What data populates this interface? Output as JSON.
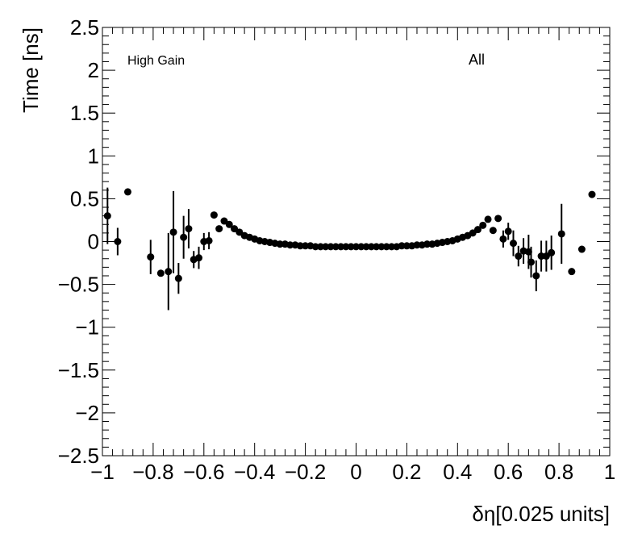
{
  "chart_data": {
    "type": "scatter",
    "xlabel": "δη[0.025 units]",
    "ylabel": "Time [ns]",
    "xlim": [
      -1,
      1
    ],
    "ylim": [
      -2.5,
      2.5
    ],
    "x_ticks": [
      -1,
      -0.8,
      -0.6,
      -0.4,
      -0.2,
      0,
      0.2,
      0.4,
      0.6,
      0.8,
      1
    ],
    "x_tick_labels": [
      "−1",
      "−0.8",
      "−0.6",
      "−0.4",
      "−0.2",
      "0",
      "0.2",
      "0.4",
      "0.6",
      "0.8",
      "1"
    ],
    "y_ticks": [
      -2.5,
      -2,
      -1.5,
      -1,
      -0.5,
      0,
      0.5,
      1,
      1.5,
      2,
      2.5
    ],
    "y_tick_labels": [
      "−2.5",
      "−2",
      "−1.5",
      "−1",
      "−0.5",
      "0",
      "0.5",
      "1",
      "1.5",
      "2",
      "2.5"
    ],
    "annotations": [
      {
        "text": "High Gain",
        "position": "top-left"
      },
      {
        "text": "All",
        "position": "top-right"
      }
    ],
    "grid": false,
    "marker_color": "#000000",
    "series": [
      {
        "points": [
          {
            "x": -0.98,
            "y": 0.3,
            "err": 0.33
          },
          {
            "x": -0.94,
            "y": 0.0,
            "err": 0.16
          },
          {
            "x": -0.9,
            "y": 0.58,
            "err": 0.0
          },
          {
            "x": -0.81,
            "y": -0.18,
            "err": 0.2
          },
          {
            "x": -0.77,
            "y": -0.37,
            "err": 0.0
          },
          {
            "x": -0.74,
            "y": -0.35,
            "err": 0.45
          },
          {
            "x": -0.72,
            "y": 0.11,
            "err": 0.48
          },
          {
            "x": -0.7,
            "y": -0.43,
            "err": 0.18
          },
          {
            "x": -0.68,
            "y": 0.05,
            "err": 0.25
          },
          {
            "x": -0.66,
            "y": 0.15,
            "err": 0.23
          },
          {
            "x": -0.64,
            "y": -0.21,
            "err": 0.1
          },
          {
            "x": -0.62,
            "y": -0.19,
            "err": 0.13
          },
          {
            "x": -0.6,
            "y": 0.0,
            "err": 0.1
          },
          {
            "x": -0.58,
            "y": 0.01,
            "err": 0.1
          },
          {
            "x": -0.56,
            "y": 0.31,
            "err": 0.0
          },
          {
            "x": -0.54,
            "y": 0.15,
            "err": 0.0
          },
          {
            "x": -0.52,
            "y": 0.24,
            "err": 0.0
          },
          {
            "x": -0.5,
            "y": 0.2,
            "err": 0.0
          },
          {
            "x": -0.48,
            "y": 0.15,
            "err": 0.0
          },
          {
            "x": -0.46,
            "y": 0.11,
            "err": 0.0
          },
          {
            "x": -0.44,
            "y": 0.07,
            "err": 0.0
          },
          {
            "x": -0.42,
            "y": 0.05,
            "err": 0.0
          },
          {
            "x": -0.4,
            "y": 0.03,
            "err": 0.0
          },
          {
            "x": -0.38,
            "y": 0.01,
            "err": 0.0
          },
          {
            "x": -0.36,
            "y": -0.0,
            "err": 0.0
          },
          {
            "x": -0.34,
            "y": -0.01,
            "err": 0.0
          },
          {
            "x": -0.32,
            "y": -0.02,
            "err": 0.0
          },
          {
            "x": -0.3,
            "y": -0.03,
            "err": 0.0
          },
          {
            "x": -0.28,
            "y": -0.03,
            "err": 0.0
          },
          {
            "x": -0.26,
            "y": -0.04,
            "err": 0.0
          },
          {
            "x": -0.24,
            "y": -0.04,
            "err": 0.0
          },
          {
            "x": -0.22,
            "y": -0.05,
            "err": 0.0
          },
          {
            "x": -0.2,
            "y": -0.05,
            "err": 0.0
          },
          {
            "x": -0.18,
            "y": -0.05,
            "err": 0.0
          },
          {
            "x": -0.16,
            "y": -0.06,
            "err": 0.0
          },
          {
            "x": -0.14,
            "y": -0.06,
            "err": 0.0
          },
          {
            "x": -0.12,
            "y": -0.06,
            "err": 0.0
          },
          {
            "x": -0.1,
            "y": -0.06,
            "err": 0.0
          },
          {
            "x": -0.08,
            "y": -0.06,
            "err": 0.0
          },
          {
            "x": -0.06,
            "y": -0.06,
            "err": 0.0
          },
          {
            "x": -0.04,
            "y": -0.06,
            "err": 0.0
          },
          {
            "x": -0.02,
            "y": -0.06,
            "err": 0.0
          },
          {
            "x": 0.0,
            "y": -0.06,
            "err": 0.0
          },
          {
            "x": 0.02,
            "y": -0.06,
            "err": 0.0
          },
          {
            "x": 0.04,
            "y": -0.06,
            "err": 0.0
          },
          {
            "x": 0.06,
            "y": -0.06,
            "err": 0.0
          },
          {
            "x": 0.08,
            "y": -0.06,
            "err": 0.0
          },
          {
            "x": 0.1,
            "y": -0.06,
            "err": 0.0
          },
          {
            "x": 0.12,
            "y": -0.06,
            "err": 0.0
          },
          {
            "x": 0.14,
            "y": -0.06,
            "err": 0.0
          },
          {
            "x": 0.16,
            "y": -0.06,
            "err": 0.0
          },
          {
            "x": 0.18,
            "y": -0.05,
            "err": 0.0
          },
          {
            "x": 0.2,
            "y": -0.05,
            "err": 0.0
          },
          {
            "x": 0.22,
            "y": -0.05,
            "err": 0.0
          },
          {
            "x": 0.24,
            "y": -0.04,
            "err": 0.0
          },
          {
            "x": 0.26,
            "y": -0.04,
            "err": 0.0
          },
          {
            "x": 0.28,
            "y": -0.03,
            "err": 0.0
          },
          {
            "x": 0.3,
            "y": -0.03,
            "err": 0.0
          },
          {
            "x": 0.32,
            "y": -0.02,
            "err": 0.0
          },
          {
            "x": 0.34,
            "y": -0.01,
            "err": 0.0
          },
          {
            "x": 0.36,
            "y": 0.0,
            "err": 0.0
          },
          {
            "x": 0.38,
            "y": 0.01,
            "err": 0.0
          },
          {
            "x": 0.4,
            "y": 0.03,
            "err": 0.0
          },
          {
            "x": 0.42,
            "y": 0.05,
            "err": 0.0
          },
          {
            "x": 0.44,
            "y": 0.07,
            "err": 0.0
          },
          {
            "x": 0.46,
            "y": 0.1,
            "err": 0.0
          },
          {
            "x": 0.48,
            "y": 0.14,
            "err": 0.0
          },
          {
            "x": 0.5,
            "y": 0.19,
            "err": 0.0
          },
          {
            "x": 0.52,
            "y": 0.26,
            "err": 0.0
          },
          {
            "x": 0.54,
            "y": 0.13,
            "err": 0.0
          },
          {
            "x": 0.56,
            "y": 0.27,
            "err": 0.0
          },
          {
            "x": 0.58,
            "y": 0.03,
            "err": 0.1
          },
          {
            "x": 0.6,
            "y": 0.12,
            "err": 0.1
          },
          {
            "x": 0.62,
            "y": -0.02,
            "err": 0.15
          },
          {
            "x": 0.64,
            "y": -0.17,
            "err": 0.12
          },
          {
            "x": 0.66,
            "y": -0.11,
            "err": 0.15
          },
          {
            "x": 0.68,
            "y": -0.12,
            "err": 0.2
          },
          {
            "x": 0.69,
            "y": -0.24,
            "err": 0.18
          },
          {
            "x": 0.71,
            "y": -0.4,
            "err": 0.18
          },
          {
            "x": 0.73,
            "y": -0.17,
            "err": 0.18
          },
          {
            "x": 0.75,
            "y": -0.17,
            "err": 0.18
          },
          {
            "x": 0.77,
            "y": -0.13,
            "err": 0.2
          },
          {
            "x": 0.81,
            "y": 0.09,
            "err": 0.35
          },
          {
            "x": 0.85,
            "y": -0.35,
            "err": 0.0
          },
          {
            "x": 0.89,
            "y": -0.09,
            "err": 0.0
          },
          {
            "x": 0.93,
            "y": 0.55,
            "err": 0.0
          }
        ]
      }
    ]
  }
}
